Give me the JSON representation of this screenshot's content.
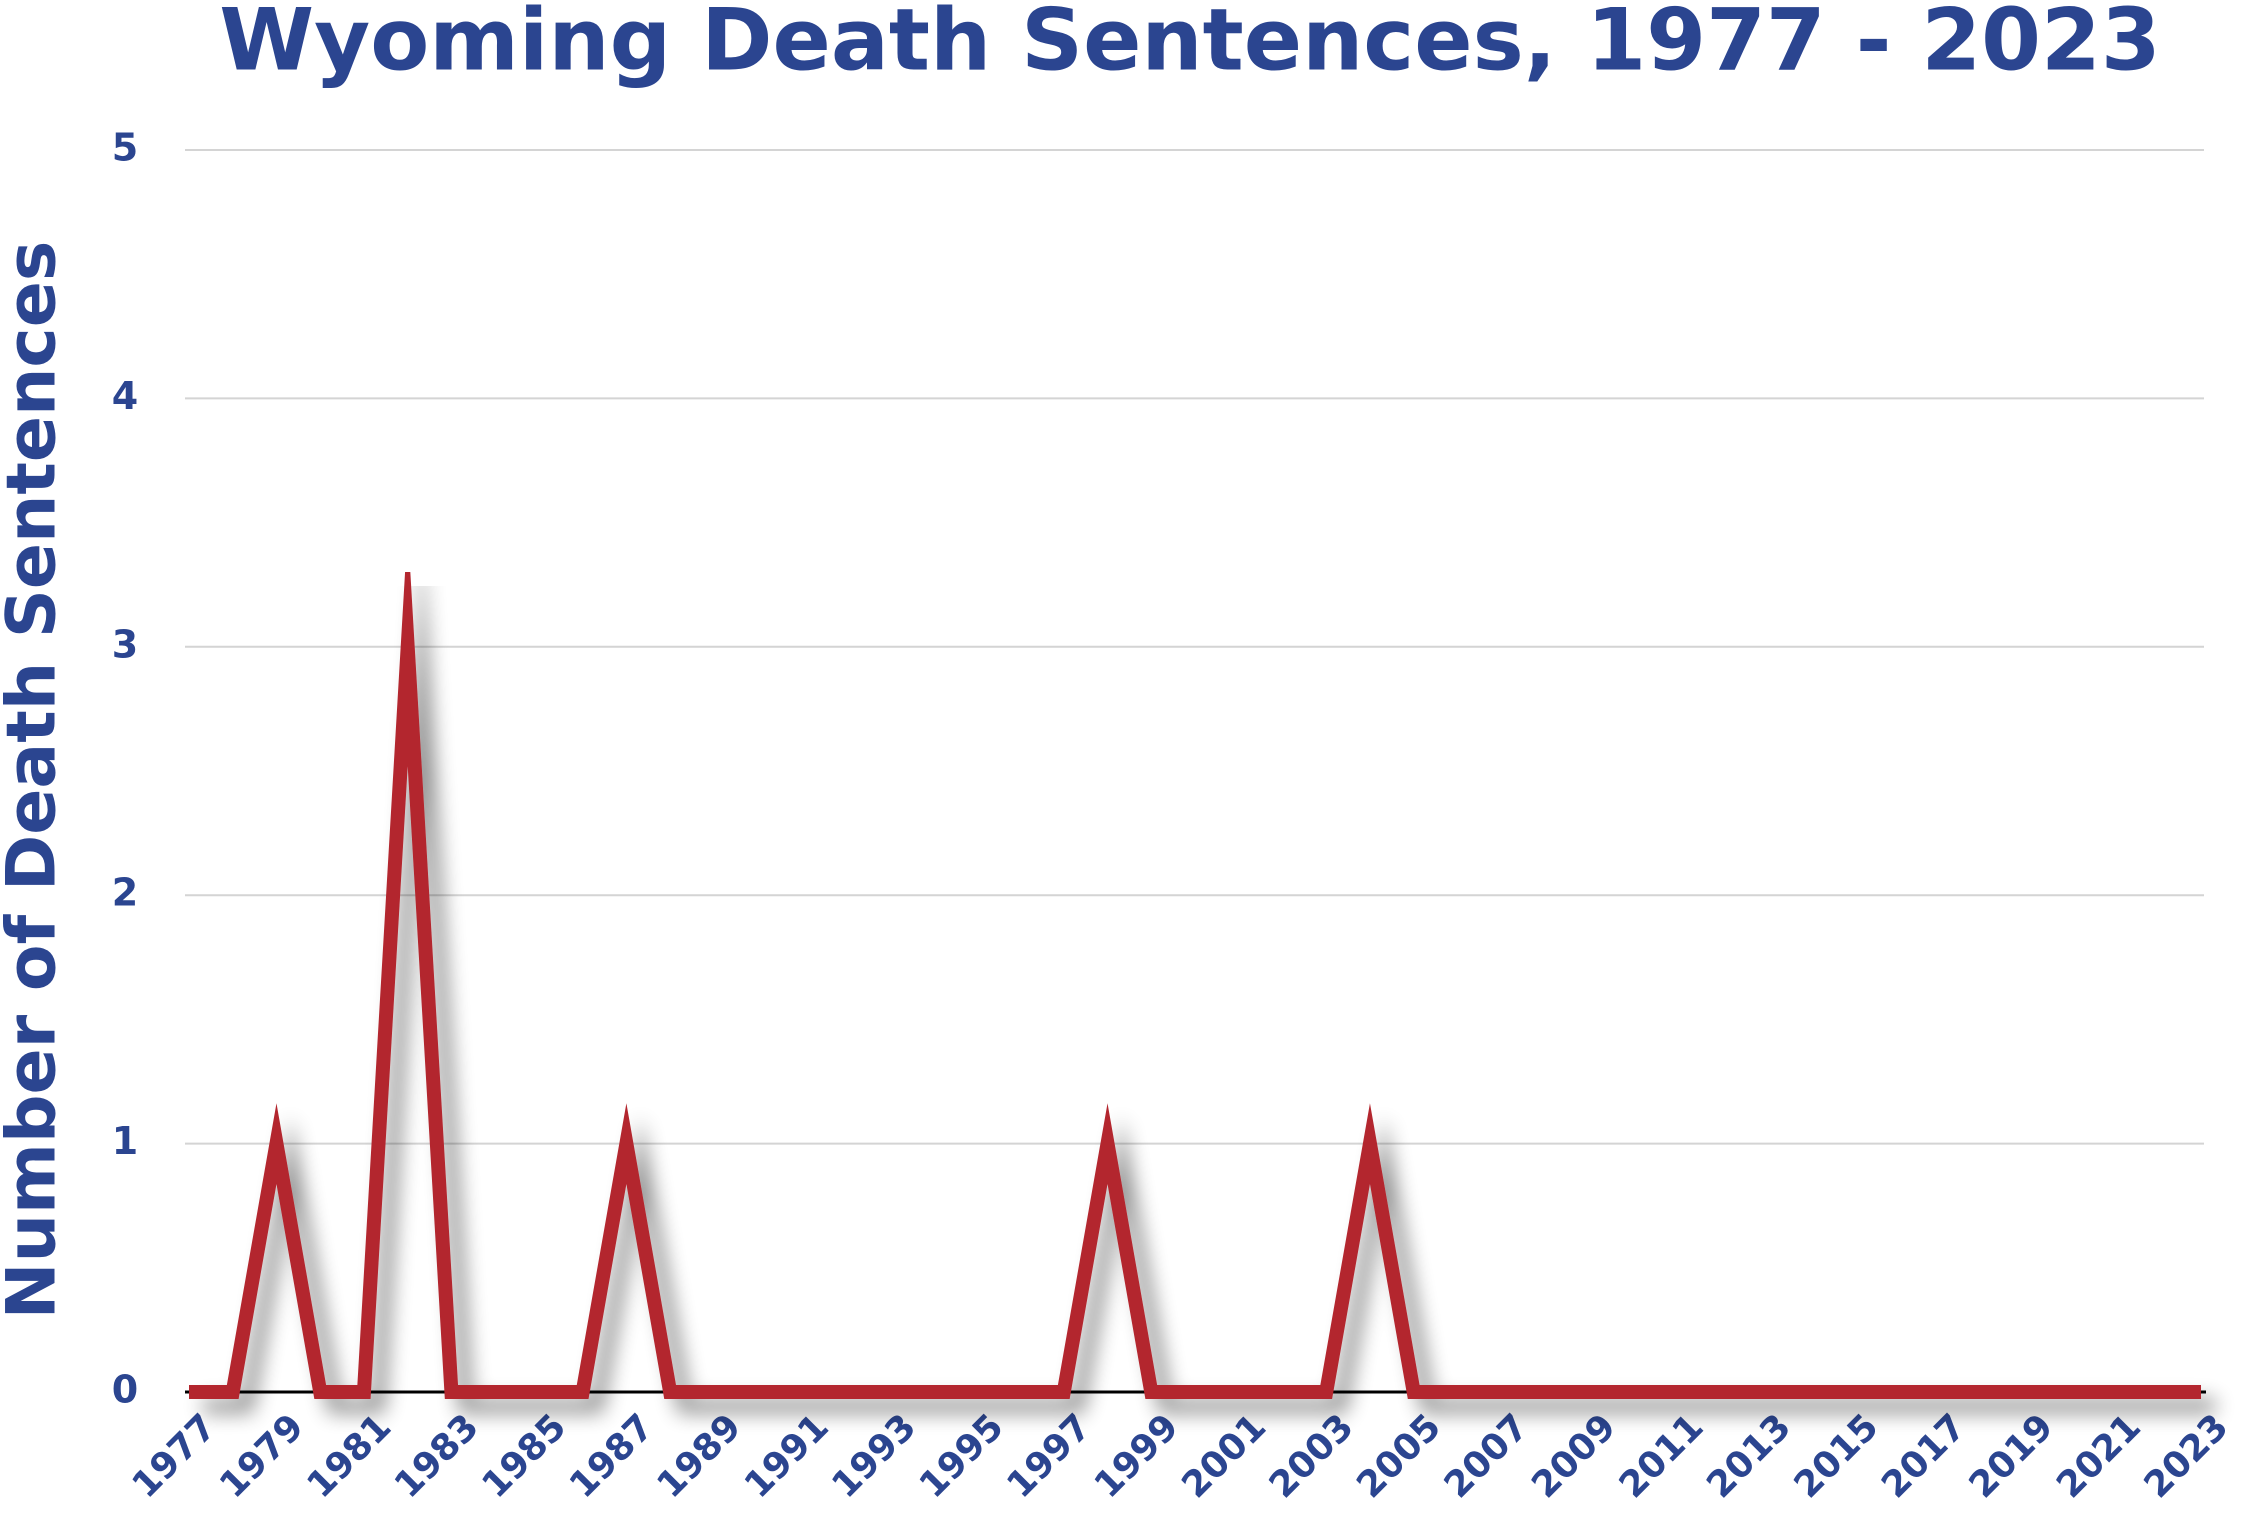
{
  "chart_data": {
    "type": "line",
    "title": "Wyoming Death Sentences, 1977 - 2023",
    "y_label": "Number of Death Sentences",
    "x": [
      1977,
      1978,
      1979,
      1980,
      1981,
      1982,
      1983,
      1984,
      1985,
      1986,
      1987,
      1988,
      1989,
      1990,
      1991,
      1992,
      1993,
      1994,
      1995,
      1996,
      1997,
      1998,
      1999,
      2000,
      2001,
      2002,
      2003,
      2004,
      2005,
      2006,
      2007,
      2008,
      2009,
      2010,
      2011,
      2012,
      2013,
      2014,
      2015,
      2016,
      2017,
      2018,
      2019,
      2020,
      2021,
      2022,
      2023
    ],
    "values": [
      0,
      0,
      1,
      0,
      0,
      3,
      0,
      0,
      0,
      0,
      1,
      0,
      0,
      0,
      0,
      0,
      0,
      0,
      0,
      0,
      0,
      1,
      0,
      0,
      0,
      0,
      0,
      1,
      0,
      0,
      0,
      0,
      0,
      0,
      0,
      0,
      0,
      0,
      0,
      0,
      0,
      0,
      0,
      0,
      0,
      0,
      0
    ],
    "color": "#b3262f",
    "xlim": [
      1977,
      2023
    ],
    "xticks": [
      1977,
      1979,
      1981,
      1983,
      1985,
      1987,
      1989,
      1991,
      1993,
      1995,
      1997,
      1999,
      2001,
      2003,
      2005,
      2007,
      2009,
      2011,
      2013,
      2015,
      2017,
      2019,
      2021,
      2023
    ],
    "ylim": [
      0,
      5
    ],
    "yticks": [
      0,
      1,
      2,
      3,
      4,
      5
    ],
    "grid": true
  }
}
